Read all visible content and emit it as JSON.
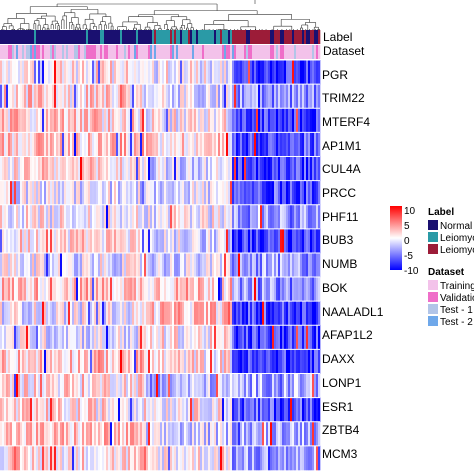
{
  "chart_data": {
    "type": "heatmap",
    "rows": [
      "PGR",
      "TRIM22",
      "MTERF4",
      "AP1M1",
      "CUL4A",
      "PRCC",
      "PHF11",
      "BUB3",
      "NUMB",
      "BOK",
      "NAALADL1",
      "AFAP1L2",
      "DAXX",
      "LONP1",
      "ESR1",
      "ZBTB4",
      "MCM3"
    ],
    "annotation_tracks": [
      "Label",
      "Dataset"
    ],
    "color_scale": {
      "ticks": [
        "10",
        "5",
        "0",
        "-5",
        "-10"
      ],
      "range": [
        -10,
        10
      ],
      "high_color": "#ff0000",
      "mid_color": "#ffffff",
      "low_color": "#0000ff"
    },
    "legend_label": {
      "title": "Label",
      "entries": [
        {
          "text": "Normal",
          "color": "#1a1070"
        },
        {
          "text": "Leiomyoma",
          "color": "#2a9aa6"
        },
        {
          "text": "Leiomyosarcoma",
          "color": "#9c1c38"
        }
      ]
    },
    "legend_dataset": {
      "title": "Dataset",
      "entries": [
        {
          "text": "Training",
          "color": "#f3c2ea"
        },
        {
          "text": "Validation",
          "color": "#ef6fc9"
        },
        {
          "text": "Test - 1",
          "color": "#b2c5e8"
        },
        {
          "text": "Test - 2",
          "color": "#6fa8ea"
        }
      ]
    }
  }
}
